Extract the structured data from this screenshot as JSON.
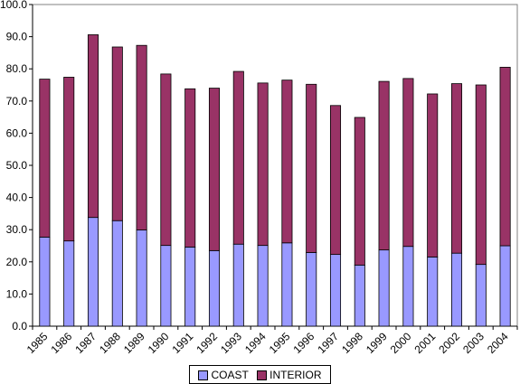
{
  "chart_data": {
    "type": "bar",
    "stacked": true,
    "title": "",
    "xlabel": "",
    "ylabel": "",
    "ylim": [
      0,
      100
    ],
    "y_ticks": [
      "0.0",
      "10.0",
      "20.0",
      "30.0",
      "40.0",
      "50.0",
      "60.0",
      "70.0",
      "80.0",
      "90.0",
      "100.0"
    ],
    "grid": "none",
    "legend_position": "bottom",
    "categories": [
      "1985",
      "1986",
      "1987",
      "1988",
      "1989",
      "1990",
      "1991",
      "1992",
      "1993",
      "1994",
      "1995",
      "1996",
      "1997",
      "1998",
      "1999",
      "2000",
      "2001",
      "2002",
      "2003",
      "2004"
    ],
    "series": [
      {
        "name": "COAST",
        "color": "#9999ff",
        "values": [
          27.7,
          26.5,
          33.8,
          32.8,
          29.9,
          25.1,
          24.6,
          23.5,
          25.5,
          25.1,
          25.9,
          22.9,
          22.3,
          19.0,
          23.7,
          24.8,
          21.5,
          22.7,
          19.2,
          25.0
        ]
      },
      {
        "name": "INTERIOR",
        "color": "#993366",
        "values": [
          49.1,
          50.9,
          56.8,
          54.0,
          57.4,
          53.3,
          49.2,
          50.5,
          53.7,
          50.5,
          50.6,
          52.3,
          46.3,
          45.9,
          52.4,
          52.2,
          50.7,
          52.7,
          55.8,
          55.5
        ]
      }
    ]
  }
}
